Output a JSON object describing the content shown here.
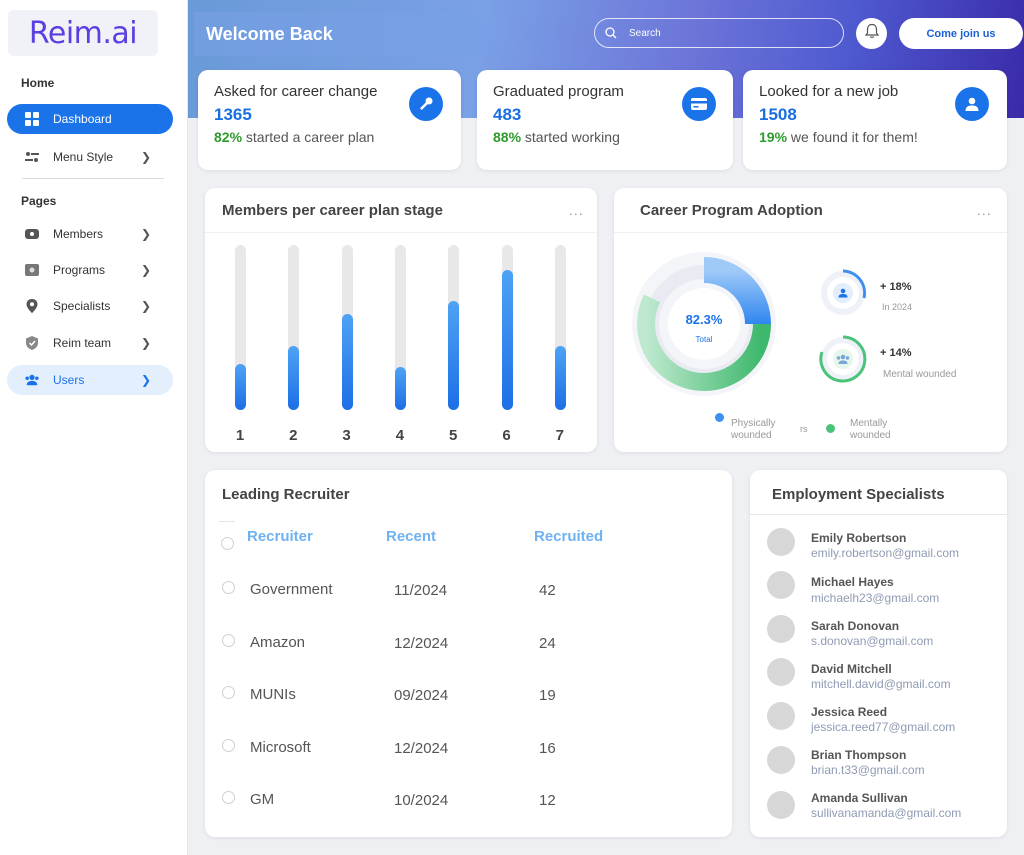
{
  "sidebar": {
    "logo": "Reim.ai",
    "home_label": "Home",
    "pages_label": "Pages",
    "items": [
      {
        "label": "Dashboard"
      },
      {
        "label": "Menu Style"
      },
      {
        "label": "Members"
      },
      {
        "label": "Programs"
      },
      {
        "label": "Specialists"
      },
      {
        "label": "Reim team"
      },
      {
        "label": "Users"
      }
    ]
  },
  "header": {
    "welcome": "Welcome Back",
    "search_placeholder": "Search",
    "join_label": "Come join us"
  },
  "stats": [
    {
      "title": "Asked for career change",
      "value": "1365",
      "pct": "82%",
      "sub": " started a career plan",
      "icon": "wrench-icon"
    },
    {
      "title": "Graduated program",
      "value": "483",
      "pct": "88%",
      "sub": " started working",
      "icon": "card-icon"
    },
    {
      "title": "Looked for a new job",
      "value": "1508",
      "pct": "19%",
      "sub": " we found it for them!",
      "icon": "user-icon"
    }
  ],
  "members_panel": {
    "title": "Members per career plan stage",
    "menu": "..."
  },
  "chart_data": {
    "type": "bar",
    "title": "Members per career plan stage",
    "categories": [
      "1",
      "2",
      "3",
      "4",
      "5",
      "6",
      "7"
    ],
    "values": [
      28,
      39,
      58,
      26,
      66,
      85,
      39
    ],
    "ylim": [
      0,
      100
    ],
    "grid": false
  },
  "adoption_panel": {
    "title": "Career Program Adoption",
    "menu": "...",
    "center_value": "82.3%",
    "center_label": "Total",
    "ring_fraction": 0.823,
    "stat1_value": "+ 18%",
    "stat1_label": "In 2024",
    "stat2_value": "+ 14%",
    "stat2_label": "Mental wounded",
    "legend1": [
      "Physically",
      "wounded"
    ],
    "legend_mid": "rs",
    "legend2": [
      "Mentally",
      "wounded"
    ],
    "colors": {
      "blue": "#3d8ff0",
      "green": "#4cc27a"
    }
  },
  "recruiter_panel": {
    "title": "Leading Recruiter",
    "columns": [
      "Recruiter",
      "Recent",
      "Recruited"
    ],
    "rows": [
      {
        "name": "Government",
        "recent": "11/2024",
        "recruited": "42"
      },
      {
        "name": "Amazon",
        "recent": "12/2024",
        "recruited": "24"
      },
      {
        "name": "MUNIs",
        "recent": "09/2024",
        "recruited": "19"
      },
      {
        "name": "Microsoft",
        "recent": "12/2024",
        "recruited": "16"
      },
      {
        "name": "GM",
        "recent": "10/2024",
        "recruited": "12"
      }
    ]
  },
  "specialists_panel": {
    "title": "Employment Specialists",
    "people": [
      {
        "name": "Emily Robertson",
        "email": "emily.robertson@gmail.com"
      },
      {
        "name": "Michael Hayes",
        "email": "michaelh23@gmail.com"
      },
      {
        "name": "Sarah Donovan",
        "email": "s.donovan@gmail.com"
      },
      {
        "name": "David Mitchell",
        "email": "mitchell.david@gmail.com"
      },
      {
        "name": "Jessica Reed",
        "email": "jessica.reed77@gmail.com"
      },
      {
        "name": "Brian Thompson",
        "email": "brian.t33@gmail.com"
      },
      {
        "name": "Amanda Sullivan",
        "email": "sullivanamanda@gmail.com"
      }
    ]
  }
}
